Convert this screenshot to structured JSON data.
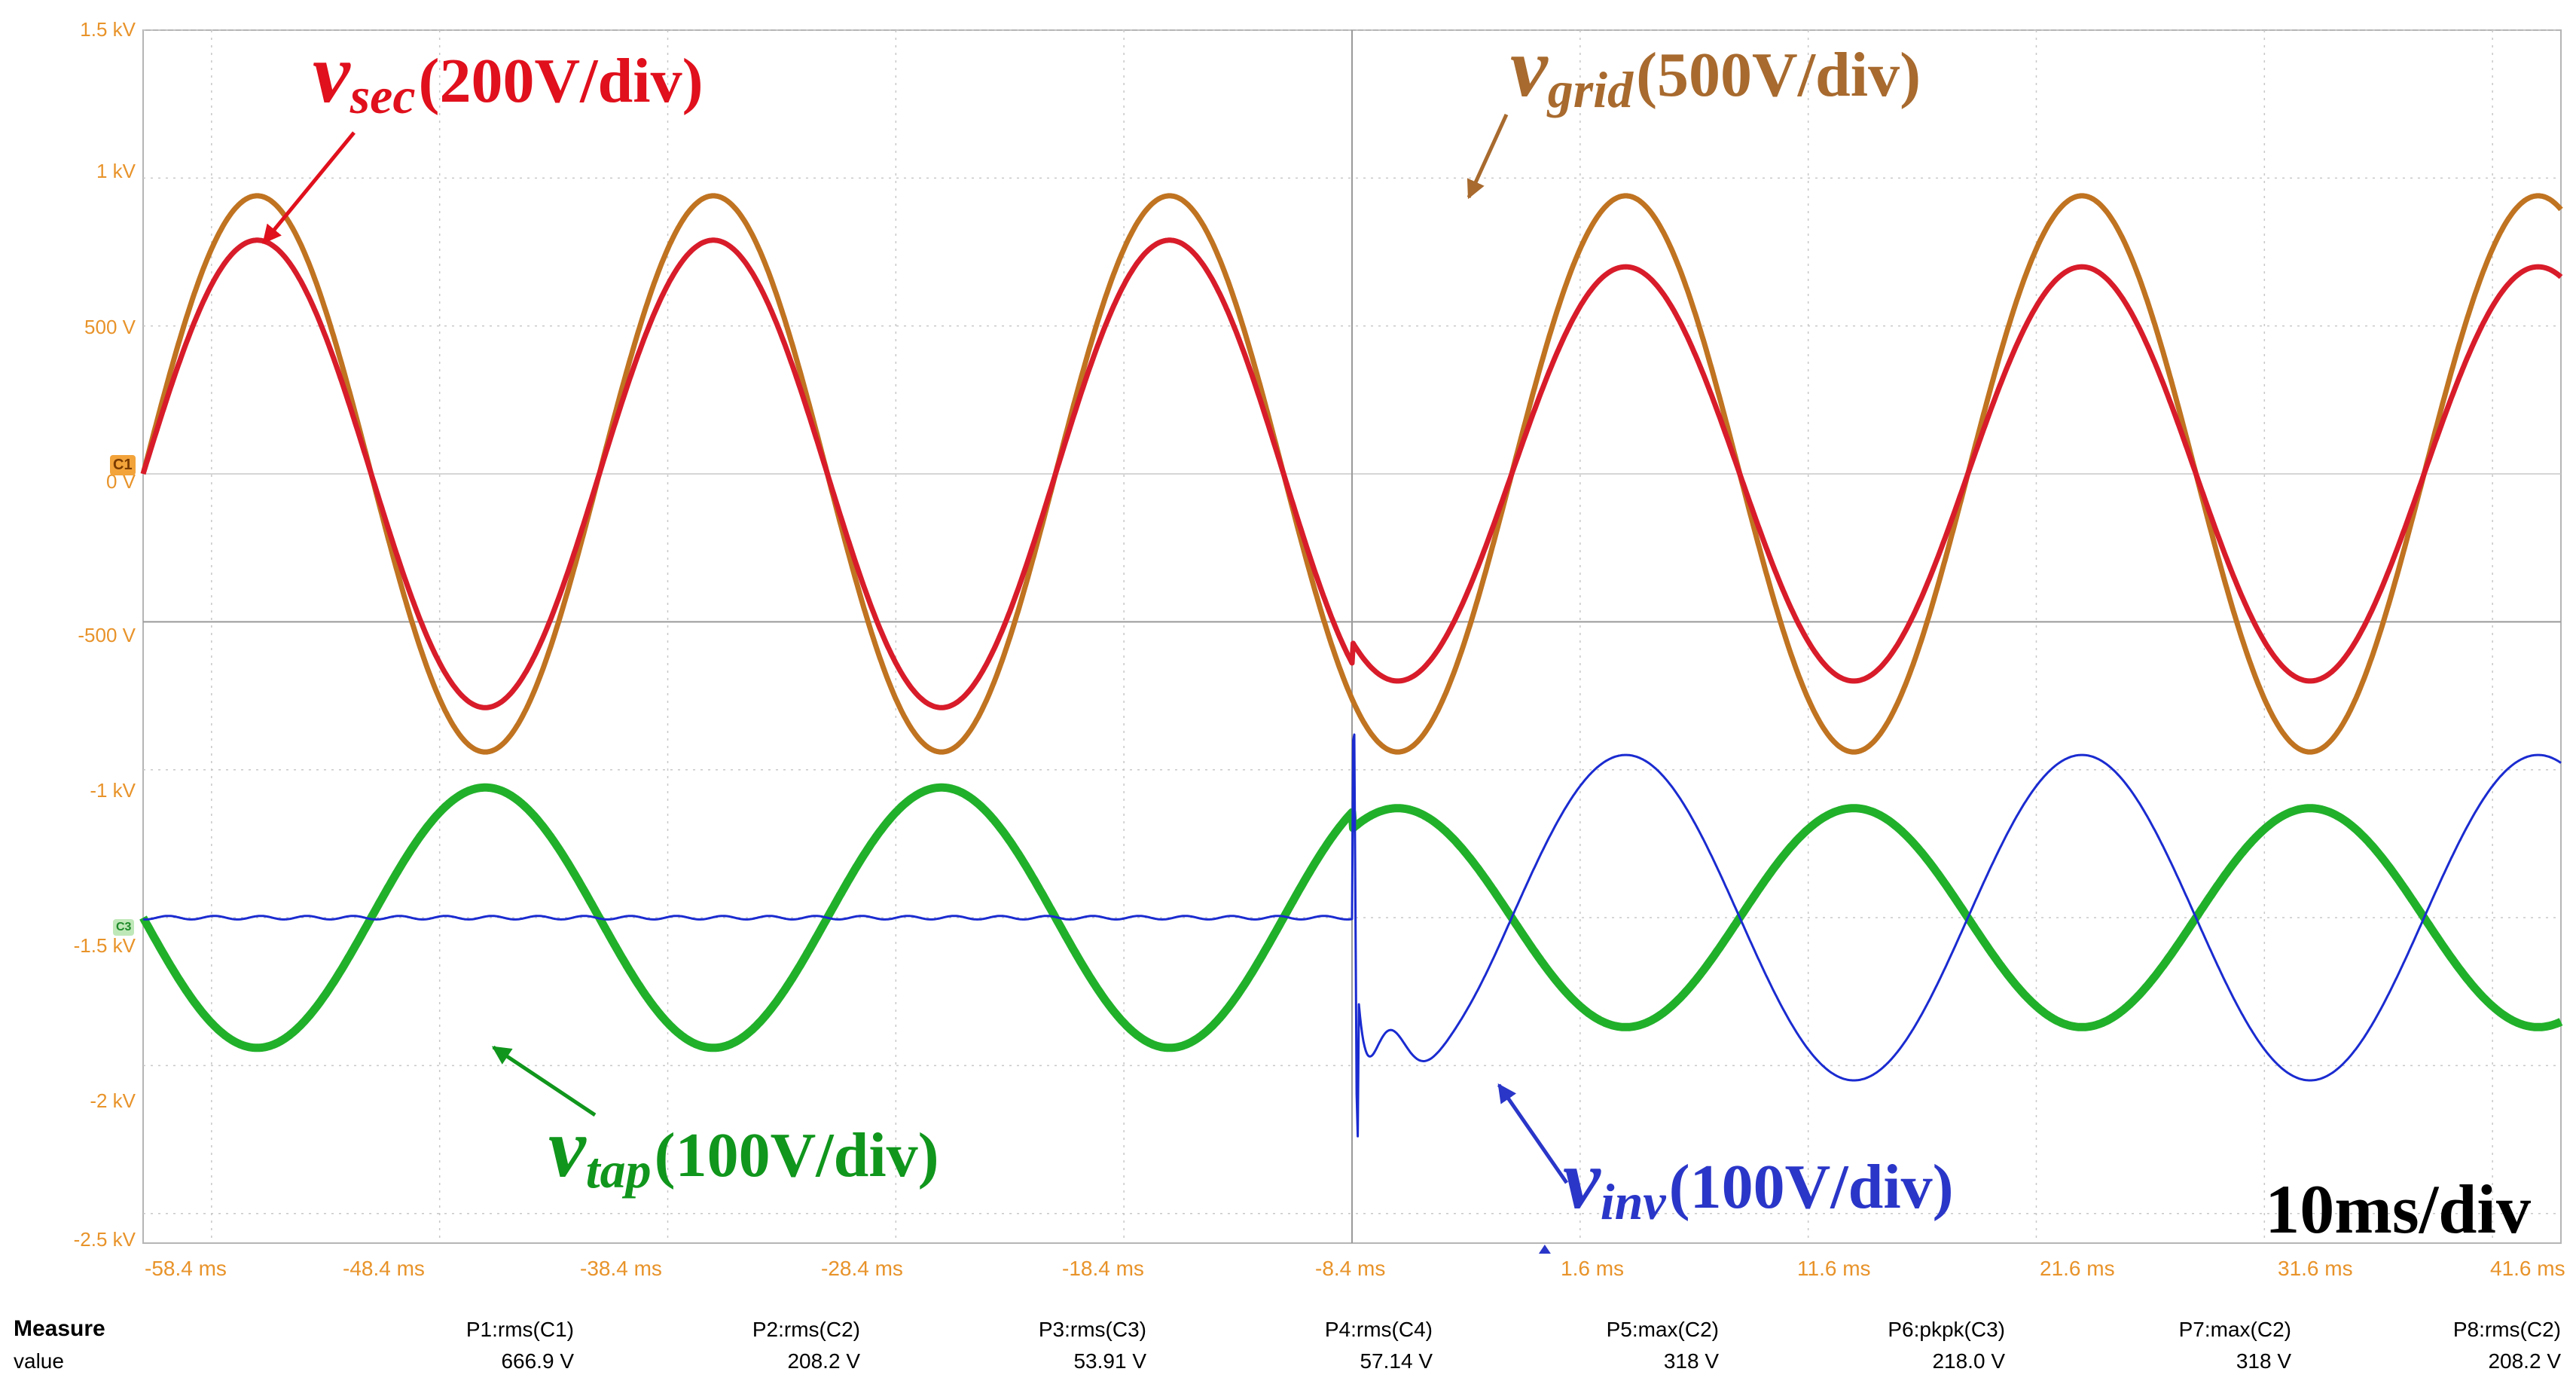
{
  "chart_data": {
    "type": "line",
    "title": "",
    "xlabel": "",
    "ylabel": "",
    "timebase": "10ms/div",
    "xlim": [
      -61.4,
      44.6
    ],
    "ylim": [
      -2.6,
      1.5
    ],
    "y_ticks": [
      "1.5 kV",
      "1 kV",
      "500 V",
      "0 V",
      "-500 V",
      "-1 kV",
      "-1.5 kV",
      "-2 kV",
      "-2.5 kV"
    ],
    "y_tick_values": [
      1.5,
      1.0,
      0.5,
      0.0,
      -0.5,
      -1.0,
      -1.5,
      -2.0,
      -2.5
    ],
    "x_ticks": [
      "-58.4 ms",
      "-48.4 ms",
      "-38.4 ms",
      "-28.4 ms",
      "-18.4 ms",
      "-8.4 ms",
      "1.6 ms",
      "11.6 ms",
      "21.6 ms",
      "31.6 ms",
      "41.6 ms"
    ],
    "x_tick_values": [
      -58.4,
      -48.4,
      -38.4,
      -28.4,
      -18.4,
      -8.4,
      1.6,
      11.6,
      21.6,
      31.6,
      41.6
    ],
    "frequency_hz": 50,
    "step_time_ms": -8.4,
    "series": [
      {
        "name": "v_grid",
        "channel": "C1",
        "scale": "500V/div",
        "color": "#c07320",
        "offset_kV": 0,
        "amplitude_kV_before": 0.94,
        "amplitude_kV_after": 0.94,
        "phase_zero_ms": -61.4,
        "inverted_after": false
      },
      {
        "name": "v_sec",
        "channel": "C2",
        "scale": "200V/div",
        "color": "#d81c2a",
        "offset_kV": 0,
        "amplitude_kV_before": 0.79,
        "amplitude_kV_after": 0.7,
        "phase_zero_ms": -61.4,
        "inverted_after": false
      },
      {
        "name": "v_tap",
        "channel": "C3",
        "scale": "100V/div",
        "color": "#21b02a",
        "offset_kV": -1.5,
        "amplitude_kV_before": 0.44,
        "amplitude_kV_after": 0.37,
        "phase_zero_ms": -61.4,
        "inverted_after": false
      },
      {
        "name": "v_inv",
        "channel": "C4",
        "scale": "100V/div",
        "color": "#1a2bd0",
        "offset_kV": -1.5,
        "amplitude_kV_before": 0.0,
        "amplitude_kV_after": 0.55,
        "phase_zero_ms": -61.4,
        "inverted_after": true
      }
    ],
    "annotations": [
      {
        "symbol": "v",
        "sub": "sec",
        "scale": "(200V/div)",
        "color": "#e0101c"
      },
      {
        "symbol": "v",
        "sub": "grid",
        "scale": "(500V/div)",
        "color": "#a86a2e"
      },
      {
        "symbol": "v",
        "sub": "tap",
        "scale": "(100V/div)",
        "color": "#10961c"
      },
      {
        "symbol": "v",
        "sub": "inv",
        "scale": "(100V/div)",
        "color": "#2a36c8"
      }
    ],
    "channel_markers": [
      "C1",
      "C3"
    ]
  },
  "measure": {
    "header": "Measure",
    "row_label": "value",
    "items": [
      {
        "name": "P1:rms(C1)",
        "value": "666.9 V"
      },
      {
        "name": "P2:rms(C2)",
        "value": "208.2 V"
      },
      {
        "name": "P3:rms(C3)",
        "value": "53.91 V"
      },
      {
        "name": "P4:rms(C4)",
        "value": "57.14 V"
      },
      {
        "name": "P5:max(C2)",
        "value": "318 V"
      },
      {
        "name": "P6:pkpk(C3)",
        "value": "218.0 V"
      },
      {
        "name": "P7:max(C2)",
        "value": "318 V"
      },
      {
        "name": "P8:rms(C2)",
        "value": "208.2 V"
      }
    ]
  }
}
